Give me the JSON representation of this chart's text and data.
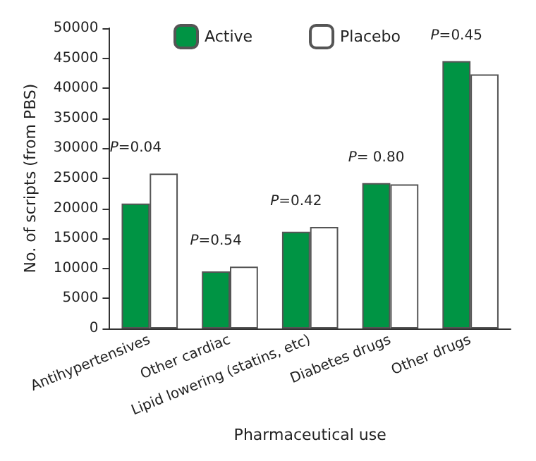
{
  "chart_data": {
    "type": "bar",
    "xlabel": "Pharmaceutical use",
    "ylabel": "No. of scripts (from PBS)",
    "categories": [
      "Antihypertensives",
      "Other cardiac",
      "Lipid lowering (statins, etc)",
      "Diabetes drugs",
      "Other drugs"
    ],
    "series": [
      {
        "name": "Active",
        "color": "#009444",
        "values": [
          20800,
          9500,
          16100,
          24200,
          44500
        ]
      },
      {
        "name": "Placebo",
        "color": "#ffffff",
        "values": [
          25800,
          10300,
          16900,
          24000,
          42300
        ]
      }
    ],
    "ylim": [
      0,
      50000
    ],
    "yticks": [
      0,
      5000,
      10000,
      15000,
      20000,
      25000,
      30000,
      35000,
      40000,
      45000,
      50000
    ],
    "grid": false,
    "legend": "top",
    "annotations": [
      "P=0.04",
      "P=0.54",
      "P=0.42",
      "P= 0.80",
      "P=0.45"
    ]
  }
}
